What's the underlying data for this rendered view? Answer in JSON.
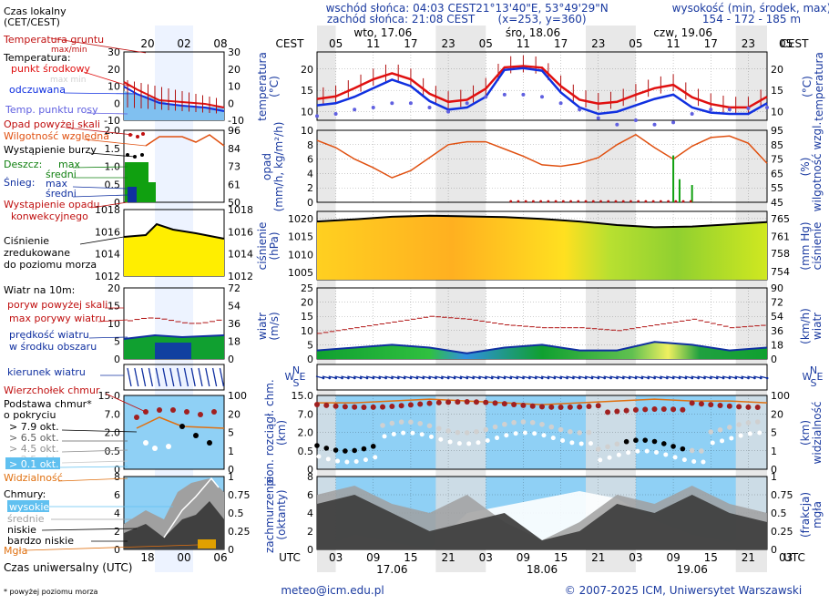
{
  "header": {
    "sunrise": "wschód słońca: 04:03 CEST",
    "sunset": "zachód słońca: 21:08 CEST",
    "coords": "21°13'40\"E, 53°49'29\"N",
    "grid": "(x=253, y=360)",
    "elev_label": "wysokość (min, środek, max)",
    "elev_values": "154 - 172 - 185 m"
  },
  "legend": {
    "local_time": "Czas lokalny",
    "local_time2": "(CET/CEST)",
    "ground_temp": "Temperatura gruntu",
    "maxmin": "max/min",
    "temp": "Temperatura:",
    "center": "punkt środkowy",
    "maxmin2": "max min",
    "felt": "odczuwana",
    "dew": "Temp. punktu rosy",
    "precip_thr": "Opad powyżej skali",
    "humidity": "Wilgotność względna",
    "storm": "Wystąpienie burzy",
    "rain": "Deszcz:",
    "max": "max",
    "avg": "średni",
    "snow": "Śnieg:",
    "precip_occ": "Wystąpienie opadu",
    "precip_occ2": "konwekcyjnego",
    "pressure": "Ciśnienie",
    "pressure2": "zredukowane",
    "pressure3": "do poziomu morza",
    "wind": "Wiatr na 10m:",
    "gust_thr": "poryw powyżej skali",
    "gust_max": "max porywy wiatru",
    "wind_speed": "prędkość wiatru",
    "wind_area": "w środku obszaru",
    "wind_dir": "kierunek wiatru",
    "cloud_top": "Wierzchołek chmur",
    "cloud_base": "Podstawa chmur*",
    "cover": "o pokryciu",
    "o79": "> 7.9 okt.",
    "o65": "> 6.5 okt.",
    "o45": "> 4.5 okt.",
    "o25": "> 2.5 okt.",
    "o01": "> 0.1 okt.",
    "visibility": "Widzialność",
    "clouds": "Chmury:",
    "high": "wysokie",
    "mid": "średnie",
    "low": "niskie",
    "vlow": "bardzo niskie",
    "fog": "Mgła",
    "utc_label": "Czas uniwersalny (UTC)",
    "footnote": "* powyżej poziomu morza"
  },
  "legend_axes": {
    "top_hours": [
      "20",
      "02",
      "08"
    ],
    "bottom_hours": [
      "18",
      "00",
      "06"
    ],
    "t_left": [
      "30",
      "20",
      "10",
      "0",
      "-10"
    ],
    "t_right": [
      "30",
      "20",
      "10",
      "0",
      "-10"
    ],
    "p_left": [
      "2.0",
      "1.5",
      "1.0",
      "0.5",
      "0"
    ],
    "h_right": [
      "96",
      "84",
      "73",
      "61",
      "50"
    ],
    "pr_left": [
      "1018",
      "1016",
      "1014",
      "1012"
    ],
    "pr_right": [
      "1018",
      "1016",
      "1014",
      "1012"
    ],
    "w_left": [
      "20",
      "15",
      "10",
      "5",
      "0"
    ],
    "w_right": [
      "72",
      "54",
      "36",
      "18",
      "0"
    ],
    "cb_left": [
      "15.0",
      "7.0",
      "2.0",
      "0.5",
      "0"
    ],
    "cb_right": [
      "100",
      "20",
      "5",
      "1",
      "0"
    ],
    "cl_left": [
      "8",
      "6",
      "4",
      "2",
      "0"
    ],
    "cl_right": [
      "1",
      "0.75",
      "0.5",
      "0.25",
      "0"
    ]
  },
  "main_axes": {
    "cest": "CEST",
    "utc": "UTC",
    "days_top": [
      "wto, 17.06",
      "śro, 18.06",
      "czw, 19.06"
    ],
    "days_bottom": [
      "17.06",
      "18.06",
      "19.06"
    ],
    "hours_top": [
      "05",
      "11",
      "17",
      "23",
      "05",
      "11",
      "17",
      "23",
      "05",
      "11",
      "17",
      "23",
      "05"
    ],
    "hours_bottom": [
      "03",
      "09",
      "15",
      "21",
      "03",
      "09",
      "15",
      "21",
      "03",
      "09",
      "15",
      "21",
      "03"
    ],
    "t_ticks": [
      "20",
      "15",
      "10"
    ],
    "p_ticks": [
      "10",
      "8",
      "6",
      "4",
      "2",
      "0"
    ],
    "h_ticks": [
      "95",
      "85",
      "75",
      "65",
      "55",
      "45"
    ],
    "pr_ticks": [
      "1020",
      "1015",
      "1010",
      "1005"
    ],
    "prhg_ticks": [
      "765",
      "761",
      "758",
      "754"
    ],
    "w_ticks": [
      "25",
      "20",
      "15",
      "10",
      "5",
      "0"
    ],
    "wk_ticks": [
      "90",
      "72",
      "54",
      "36",
      "18",
      "0"
    ],
    "cb_ticks": [
      "15.0",
      "7.0",
      "2.0",
      "0.5",
      "0"
    ],
    "vis_ticks": [
      "100",
      "20",
      "5",
      "1",
      "0"
    ],
    "cl_ticks": [
      "8",
      "6",
      "4",
      "2",
      "0"
    ],
    "clf_ticks": [
      "1",
      "0.75",
      "0.5",
      "0.25",
      "0"
    ]
  },
  "axis_titles": {
    "temp_l": "temperatura",
    "temp_l2": "(°C)",
    "temp_r": "temperatura",
    "temp_r2": "(°C)",
    "prec_l": "opad",
    "prec_l2": "(mm/h, kg/m²/h)",
    "prec_r": "wilgotność wzgl.",
    "prec_r2": "(%)",
    "pr_l": "ciśnienie",
    "pr_l2": "(hPa)",
    "pr_r": "ciśnienie",
    "pr_r2": "(mm Hg)",
    "w_l": "wiatr",
    "w_l2": "(m/s)",
    "w_r": "wiatr",
    "w_r2": "(km/h)",
    "cb_l": "pion. rozciągł. chm.",
    "cb_l2": "(km)",
    "cb_r": "widzialność",
    "cb_r2": "(km)",
    "cl_l": "zachmurzenie",
    "cl_l2": "(oktanty)",
    "cl_r": "mgła",
    "cl_r2": "(frakcja)",
    "dir_n": "N",
    "dir_w": "W",
    "dir_s": "S",
    "dir_e": "E"
  },
  "footer": {
    "email": "meteo@icm.edu.pl",
    "copyright": "© 2007-2025 ICM, Uniwersytet Warszawski"
  },
  "colors": {
    "temp": "#e01010",
    "felt": "#1030e0",
    "dew": "#6060e0",
    "humidity": "#e05010",
    "pressure_line": "#000000",
    "sky": "#8fd0f5",
    "night": "#e0e0e0",
    "gust": "#b01010",
    "orange": "#e07010"
  },
  "chart_data": [
    {
      "type": "line",
      "title": "temperatura (°C)",
      "hours_from_start": "x is hours from 17.06 00 UTC",
      "x": [
        0,
        3,
        6,
        9,
        12,
        15,
        18,
        21,
        24,
        27,
        30,
        33,
        36,
        39,
        42,
        45,
        48,
        51,
        54,
        57,
        60,
        63,
        66,
        69,
        72
      ],
      "series": [
        {
          "name": "temperatura punkt środkowy",
          "values": [
            13,
            13.6,
            15.5,
            17.6,
            19,
            17.6,
            14.2,
            12.3,
            12.8,
            15.4,
            20.4,
            20.7,
            20.3,
            16,
            12.8,
            11.9,
            12.3,
            14,
            15.5,
            16.3,
            13.4,
            11.8,
            11,
            11,
            13.5
          ]
        },
        {
          "name": "odczuwana",
          "values": [
            11.5,
            12,
            13.5,
            15.5,
            17.5,
            16,
            12.5,
            10.5,
            11,
            13.5,
            19.8,
            20.2,
            19.6,
            14.5,
            11,
            9.5,
            10,
            11.5,
            13,
            14,
            11,
            9.8,
            9.5,
            9.5,
            12
          ]
        },
        {
          "name": "temp. punktu rosy",
          "values": [
            9,
            9.5,
            10.5,
            11,
            12,
            12,
            11,
            10,
            12,
            13.5,
            14,
            14,
            13.5,
            12,
            10.5,
            8.5,
            7,
            8,
            7,
            7.5,
            9.5,
            10.5,
            10.5,
            10.8,
            11
          ]
        }
      ],
      "ylim": [
        8,
        24
      ]
    },
    {
      "type": "line",
      "title": "wilgotność wzgl. (%)",
      "x": [
        0,
        3,
        6,
        9,
        12,
        15,
        18,
        21,
        24,
        27,
        30,
        33,
        36,
        39,
        42,
        45,
        48,
        51,
        54,
        57,
        60,
        63,
        66,
        69,
        72
      ],
      "series": [
        {
          "name": "wilgotność względna",
          "values": [
            88,
            83,
            75,
            69,
            62,
            67,
            76,
            85,
            87,
            87,
            82,
            77,
            71,
            70,
            72,
            76,
            85,
            92,
            83,
            75,
            84,
            90,
            91,
            86,
            72
          ]
        }
      ],
      "ylim": [
        45,
        95
      ]
    },
    {
      "type": "area",
      "title": "ciśnienie (hPa)",
      "x": [
        0,
        6,
        12,
        18,
        24,
        30,
        36,
        42,
        48,
        54,
        60,
        66,
        72
      ],
      "series": [
        {
          "name": "ciśnienie zredukowane",
          "values": [
            1019.2,
            1019.8,
            1020.5,
            1020.8,
            1020.6,
            1020.4,
            1019.9,
            1019.2,
            1018.2,
            1017.6,
            1017.8,
            1018.4,
            1019
          ]
        }
      ],
      "ylim": [
        1003,
        1022
      ]
    },
    {
      "type": "line",
      "title": "wiatr (m/s)",
      "x": [
        0,
        6,
        12,
        18,
        24,
        30,
        36,
        42,
        48,
        54,
        60,
        66,
        72
      ],
      "series": [
        {
          "name": "max porywy wiatru",
          "values": [
            9,
            11,
            13,
            15,
            14,
            12,
            11,
            11,
            10,
            12,
            14,
            11,
            12
          ]
        },
        {
          "name": "prędkość wiatru",
          "values": [
            3,
            4,
            5,
            4,
            2,
            4,
            5,
            3,
            3,
            6,
            5,
            3,
            4
          ]
        }
      ],
      "ylim": [
        0,
        25
      ]
    },
    {
      "type": "area",
      "title": "zachmurzenie (oktanty)",
      "x": [
        0,
        6,
        12,
        18,
        24,
        30,
        36,
        42,
        48,
        54,
        60,
        66,
        72
      ],
      "series": [
        {
          "name": "niskie",
          "values": [
            5,
            6,
            4,
            2,
            3,
            4,
            1,
            2,
            5,
            4,
            6,
            4,
            3
          ]
        },
        {
          "name": "średnie",
          "values": [
            6,
            7,
            5,
            4,
            6,
            3,
            1,
            3,
            6,
            5,
            7,
            5,
            4
          ]
        }
      ],
      "ylim": [
        0,
        8
      ]
    }
  ]
}
